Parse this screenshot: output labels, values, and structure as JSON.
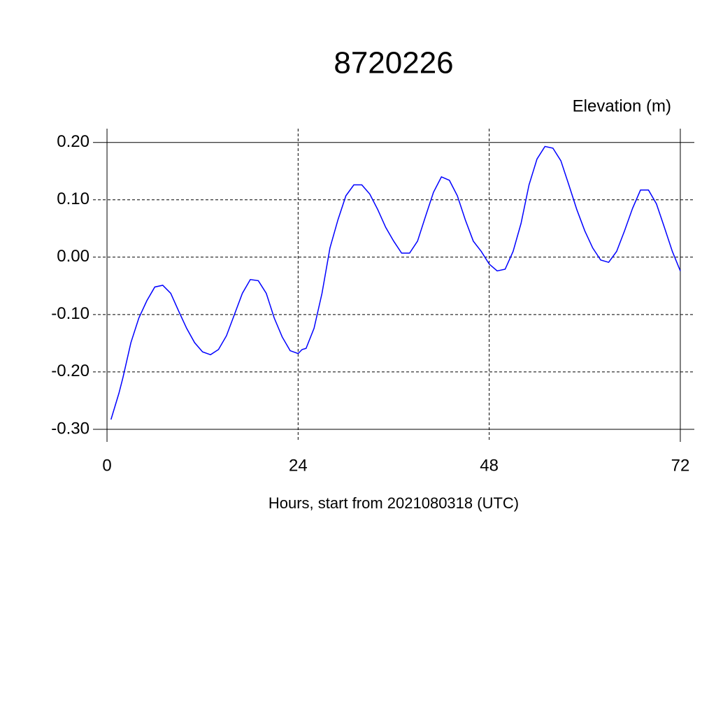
{
  "chart_data": {
    "type": "line",
    "title": "8720226",
    "subtitle": "Elevation (m)",
    "x_label": "Hours, start from 2021080318 (UTC)",
    "x": [
      0.5,
      1.5,
      2,
      3,
      4,
      5,
      6,
      7,
      8,
      9,
      10,
      11,
      12,
      13,
      14,
      15,
      16,
      17,
      18,
      19,
      20,
      21,
      22,
      23,
      24,
      24.5,
      25,
      26,
      27,
      28,
      29,
      30,
      31,
      32,
      33,
      34,
      35,
      36,
      37,
      38,
      39,
      40,
      41,
      42,
      43,
      44,
      45,
      46,
      47,
      48,
      49,
      50,
      51,
      52,
      53,
      54,
      55,
      56,
      57,
      58,
      59,
      60,
      61,
      62,
      63,
      64,
      65,
      66,
      67,
      68,
      69,
      70,
      71,
      72
    ],
    "series": [
      {
        "name": "Elevation",
        "color": "#0000ff",
        "values": [
          -0.283,
          -0.237,
          -0.21,
          -0.149,
          -0.106,
          -0.076,
          -0.052,
          -0.049,
          -0.063,
          -0.094,
          -0.124,
          -0.149,
          -0.165,
          -0.17,
          -0.161,
          -0.137,
          -0.1,
          -0.063,
          -0.039,
          -0.041,
          -0.063,
          -0.106,
          -0.139,
          -0.163,
          -0.168,
          -0.161,
          -0.159,
          -0.124,
          -0.063,
          0.016,
          0.065,
          0.107,
          0.126,
          0.126,
          0.11,
          0.083,
          0.052,
          0.028,
          0.007,
          0.007,
          0.028,
          0.071,
          0.113,
          0.14,
          0.134,
          0.107,
          0.065,
          0.028,
          0.01,
          -0.012,
          -0.024,
          -0.021,
          0.01,
          0.059,
          0.126,
          0.171,
          0.193,
          0.19,
          0.168,
          0.126,
          0.083,
          0.046,
          0.016,
          -0.005,
          -0.009,
          0.01,
          0.046,
          0.085,
          0.117,
          0.117,
          0.093,
          0.052,
          0.01,
          -0.024
        ]
      }
    ],
    "xlim": [
      -1.76,
      73.76
    ],
    "xticks": [
      0,
      24,
      48,
      72
    ],
    "ylim": [
      -0.322,
      0.224
    ],
    "yticks": [
      {
        "value": -0.3,
        "label": "-0.30"
      },
      {
        "value": -0.2,
        "label": "-0.20"
      },
      {
        "value": -0.1,
        "label": "-0.10"
      },
      {
        "value": 0,
        "label": "0.00"
      },
      {
        "value": 0.1,
        "label": "0.10"
      },
      {
        "value": 0.2,
        "label": "0.20"
      }
    ],
    "grid": true
  }
}
